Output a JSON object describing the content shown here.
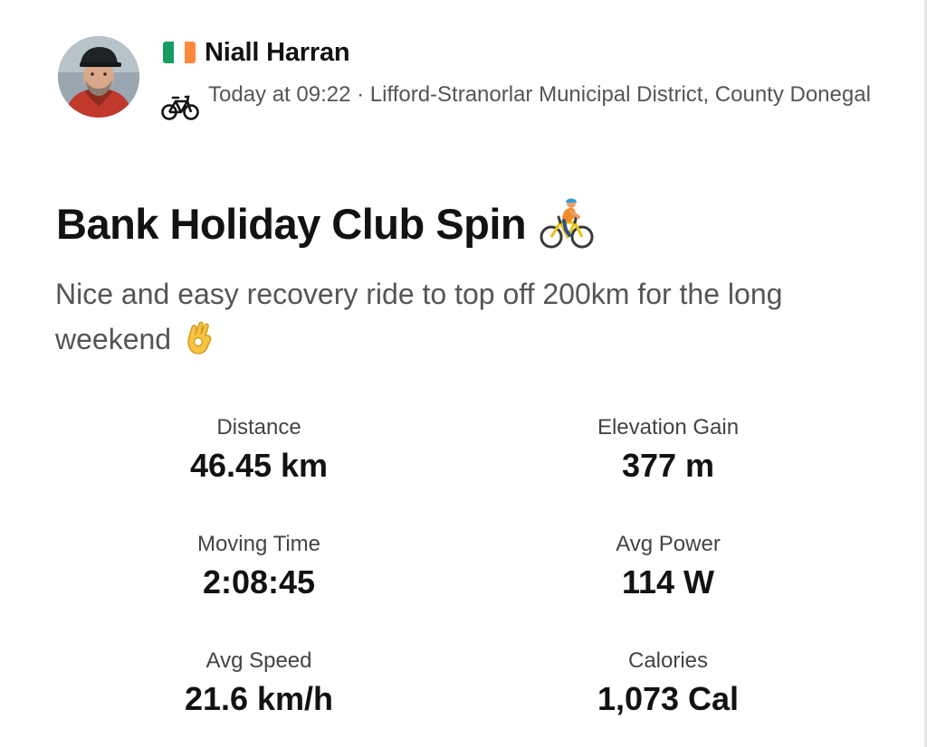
{
  "athlete": {
    "name": "Niall Harran",
    "flag_colors": [
      "#169B62",
      "#FFFFFF",
      "#FF883E"
    ]
  },
  "activity_meta": {
    "text": "Today at 09:22 · Lifford-Stranorlar Municipal District, County Donegal",
    "type_icon": "bike-icon"
  },
  "activity": {
    "title": "Bank Holiday Club Spin",
    "title_emoji": "cyclist-emoji",
    "description": "Nice and easy recovery ride to top off 200km for the long weekend",
    "description_emoji": "ok-hand-emoji"
  },
  "stats": [
    {
      "label": "Distance",
      "value": "46.45 km"
    },
    {
      "label": "Elevation Gain",
      "value": "377 m"
    },
    {
      "label": "Moving Time",
      "value": "2:08:45"
    },
    {
      "label": "Avg Power",
      "value": "114 W"
    },
    {
      "label": "Avg Speed",
      "value": "21.6 km/h"
    },
    {
      "label": "Calories",
      "value": "1,073 Cal"
    }
  ]
}
